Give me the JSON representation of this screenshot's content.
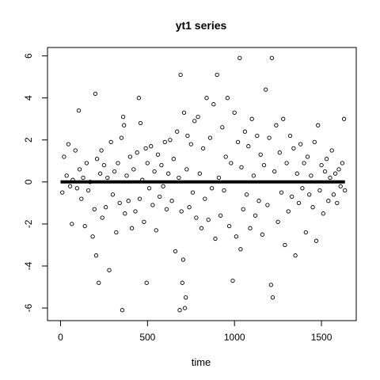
{
  "chart_data": {
    "type": "scatter",
    "title": "yt1 series",
    "xlabel": "time",
    "ylabel": "",
    "xlim": [
      -75,
      1700
    ],
    "ylim": [
      -6.6,
      6.4
    ],
    "xticks": [
      0,
      500,
      1000,
      1500
    ],
    "yticks": [
      -6,
      -4,
      -2,
      0,
      2,
      4,
      6
    ],
    "xtick_labels": [
      "0",
      "500",
      "1000",
      "1500"
    ],
    "ytick_labels": [
      "-6",
      "-4",
      "-2",
      "0",
      "2",
      "4",
      "6"
    ],
    "grid": false,
    "legend": "none",
    "series": [
      {
        "marker": "open-circle",
        "color": "#000000",
        "points": [
          [
            10,
            -0.5
          ],
          [
            20,
            1.2
          ],
          [
            35,
            0.3
          ],
          [
            45,
            1.8
          ],
          [
            55,
            -0.2
          ],
          [
            65,
            -2.0
          ],
          [
            70,
            0.1
          ],
          [
            85,
            1.5
          ],
          [
            95,
            -0.3
          ],
          [
            105,
            3.4
          ],
          [
            110,
            0.6
          ],
          [
            120,
            -0.8
          ],
          [
            130,
            0.2
          ],
          [
            140,
            -2.1
          ],
          [
            150,
            0.9
          ],
          [
            160,
            -0.4
          ],
          [
            170,
            0.0
          ],
          [
            185,
            -2.6
          ],
          [
            195,
            -1.3
          ],
          [
            200,
            4.2
          ],
          [
            205,
            -3.5
          ],
          [
            210,
            1.1
          ],
          [
            220,
            -4.8
          ],
          [
            228,
            0.4
          ],
          [
            235,
            1.5
          ],
          [
            240,
            -1.7
          ],
          [
            250,
            0.8
          ],
          [
            260,
            -1.2
          ],
          [
            270,
            0.2
          ],
          [
            280,
            -4.2
          ],
          [
            290,
            1.9
          ],
          [
            300,
            -0.6
          ],
          [
            310,
            0.5
          ],
          [
            320,
            -2.4
          ],
          [
            330,
            0.9
          ],
          [
            340,
            -1.0
          ],
          [
            350,
            2.1
          ],
          [
            355,
            -6.1
          ],
          [
            360,
            3.1
          ],
          [
            365,
            2.7
          ],
          [
            370,
            -1.5
          ],
          [
            380,
            0.3
          ],
          [
            390,
            -0.9
          ],
          [
            400,
            1.2
          ],
          [
            410,
            -2.2
          ],
          [
            420,
            0.6
          ],
          [
            430,
            -1.4
          ],
          [
            440,
            1.4
          ],
          [
            450,
            4.0
          ],
          [
            455,
            -0.8
          ],
          [
            460,
            2.8
          ],
          [
            470,
            0.1
          ],
          [
            480,
            -1.9
          ],
          [
            490,
            1.6
          ],
          [
            495,
            -4.8
          ],
          [
            500,
            0.9
          ],
          [
            510,
            -0.3
          ],
          [
            520,
            1.7
          ],
          [
            530,
            -1.1
          ],
          [
            540,
            0.5
          ],
          [
            550,
            -2.3
          ],
          [
            560,
            1.3
          ],
          [
            570,
            -0.7
          ],
          [
            580,
            0.8
          ],
          [
            590,
            -0.2
          ],
          [
            600,
            1.9
          ],
          [
            610,
            -1.3
          ],
          [
            620,
            0.4
          ],
          [
            630,
            2.0
          ],
          [
            640,
            -0.9
          ],
          [
            650,
            1.1
          ],
          [
            660,
            -3.3
          ],
          [
            670,
            2.4
          ],
          [
            680,
            0.2
          ],
          [
            685,
            -6.1
          ],
          [
            690,
            5.1
          ],
          [
            695,
            -1.4
          ],
          [
            700,
            -4.8
          ],
          [
            705,
            -3.7
          ],
          [
            710,
            3.3
          ],
          [
            715,
            -6.0
          ],
          [
            720,
            -5.5
          ],
          [
            725,
            0.6
          ],
          [
            730,
            2.2
          ],
          [
            740,
            -1.2
          ],
          [
            750,
            1.8
          ],
          [
            760,
            -0.5
          ],
          [
            770,
            2.9
          ],
          [
            780,
            -1.7
          ],
          [
            790,
            3.1
          ],
          [
            800,
            0.4
          ],
          [
            810,
            -2.2
          ],
          [
            820,
            1.6
          ],
          [
            830,
            -0.8
          ],
          [
            840,
            4.0
          ],
          [
            850,
            -1.8
          ],
          [
            860,
            2.1
          ],
          [
            870,
            -0.3
          ],
          [
            880,
            3.7
          ],
          [
            890,
            -2.7
          ],
          [
            900,
            5.1
          ],
          [
            910,
            0.2
          ],
          [
            920,
            -1.6
          ],
          [
            930,
            2.6
          ],
          [
            940,
            -0.4
          ],
          [
            950,
            1.2
          ],
          [
            960,
            4.0
          ],
          [
            970,
            -2.1
          ],
          [
            980,
            0.9
          ],
          [
            990,
            -4.7
          ],
          [
            1000,
            3.3
          ],
          [
            1010,
            -2.6
          ],
          [
            1020,
            1.9
          ],
          [
            1030,
            5.9
          ],
          [
            1035,
            -3.2
          ],
          [
            1040,
            0.7
          ],
          [
            1050,
            -1.3
          ],
          [
            1060,
            2.4
          ],
          [
            1070,
            -0.6
          ],
          [
            1080,
            1.7
          ],
          [
            1090,
            -2.2
          ],
          [
            1100,
            3.0
          ],
          [
            1110,
            0.3
          ],
          [
            1120,
            -1.6
          ],
          [
            1130,
            2.2
          ],
          [
            1140,
            -0.9
          ],
          [
            1150,
            1.3
          ],
          [
            1160,
            -2.5
          ],
          [
            1170,
            0.8
          ],
          [
            1180,
            4.4
          ],
          [
            1190,
            -1.1
          ],
          [
            1200,
            2.1
          ],
          [
            1210,
            -4.9
          ],
          [
            1215,
            5.9
          ],
          [
            1220,
            -5.5
          ],
          [
            1230,
            0.5
          ],
          [
            1240,
            2.7
          ],
          [
            1250,
            -1.9
          ],
          [
            1260,
            1.4
          ],
          [
            1270,
            -0.5
          ],
          [
            1280,
            3.0
          ],
          [
            1290,
            -3.0
          ],
          [
            1300,
            0.9
          ],
          [
            1310,
            -1.4
          ],
          [
            1320,
            2.2
          ],
          [
            1330,
            -0.7
          ],
          [
            1340,
            1.6
          ],
          [
            1350,
            -3.5
          ],
          [
            1360,
            0.4
          ],
          [
            1370,
            -1.0
          ],
          [
            1380,
            1.8
          ],
          [
            1390,
            -0.3
          ],
          [
            1400,
            0.9
          ],
          [
            1410,
            -2.4
          ],
          [
            1420,
            1.2
          ],
          [
            1430,
            -0.6
          ],
          [
            1440,
            0.3
          ],
          [
            1450,
            -1.2
          ],
          [
            1460,
            1.9
          ],
          [
            1470,
            -2.8
          ],
          [
            1480,
            2.7
          ],
          [
            1490,
            -0.4
          ],
          [
            1500,
            0.8
          ],
          [
            1510,
            -1.5
          ],
          [
            1520,
            0.5
          ],
          [
            1530,
            1.1
          ],
          [
            1540,
            -0.9
          ],
          [
            1550,
            0.2
          ],
          [
            1560,
            1.5
          ],
          [
            1570,
            -0.6
          ],
          [
            1580,
            0.4
          ],
          [
            1590,
            -1.0
          ],
          [
            1600,
            0.6
          ],
          [
            1610,
            -0.2
          ],
          [
            1620,
            0.9
          ],
          [
            1630,
            3.0
          ],
          [
            1635,
            -0.4
          ]
        ]
      },
      {
        "type": "line",
        "color": "#000000",
        "points": [
          [
            0,
            0.0
          ],
          [
            1635,
            0.0
          ]
        ]
      }
    ]
  }
}
